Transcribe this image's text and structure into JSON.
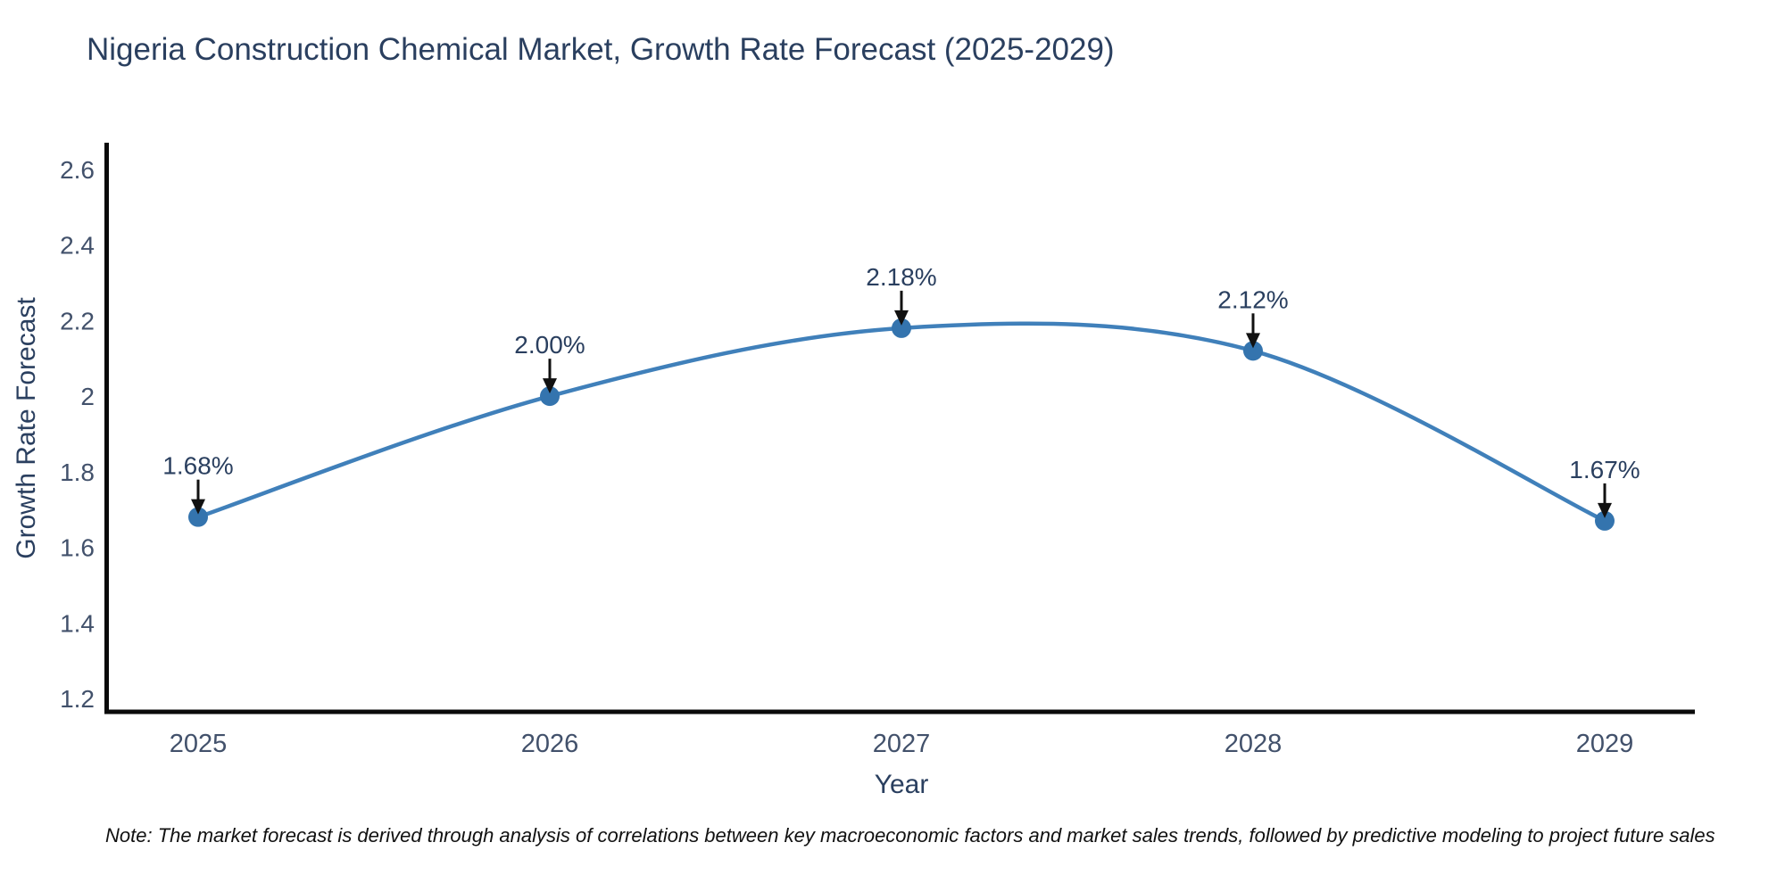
{
  "chart_data": {
    "type": "line",
    "title": "Nigeria Construction Chemical Market, Growth Rate Forecast (2025-2029)",
    "xlabel": "Year",
    "ylabel": "Growth Rate Forecast",
    "x": [
      2025,
      2026,
      2027,
      2028,
      2029
    ],
    "series": [
      {
        "name": "Growth Rate Forecast",
        "values": [
          1.68,
          2.0,
          2.18,
          2.12,
          1.67
        ]
      }
    ],
    "point_labels": [
      "1.68%",
      "2.00%",
      "2.18%",
      "2.12%",
      "1.67%"
    ],
    "xtick_labels": [
      "2025",
      "2026",
      "2027",
      "2028",
      "2029"
    ],
    "ytick_values": [
      2.6,
      2.4,
      2.2,
      2.0,
      1.8,
      1.6,
      1.4,
      1.2
    ],
    "ytick_labels": [
      "2.6",
      "2.4",
      "2.2",
      "2",
      "1.8",
      "1.6",
      "1.4",
      "1.2"
    ],
    "ylim": [
      1.16,
      2.67
    ],
    "grid": false,
    "legend": "none",
    "line_shape": "spline",
    "colors": {
      "line": "#4080ba",
      "marker": "#3474ae",
      "title_text": "#2a3f5f",
      "axis_title_text": "#2a3f5f",
      "tick_text": "#42516b",
      "annotation_text": "#2a3f5f",
      "arrow": "#111111",
      "axis_line": "#0a0a0a",
      "background": "#ffffff"
    }
  },
  "note": {
    "text": "Note: The market forecast is derived through analysis of correlations between key macroeconomic factors and market sales trends, followed by predictive modeling to project future sales"
  }
}
